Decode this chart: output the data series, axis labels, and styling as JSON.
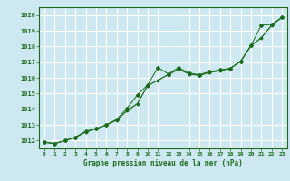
{
  "title": "Graphe pression niveau de la mer (hPa)",
  "bg_color": "#cde8f0",
  "grid_color": "#ffffff",
  "line_color": "#1a6b1a",
  "x_ticks": [
    0,
    1,
    2,
    3,
    4,
    5,
    6,
    7,
    8,
    9,
    10,
    11,
    12,
    13,
    14,
    15,
    16,
    17,
    18,
    19,
    20,
    21,
    22,
    23
  ],
  "ylim": [
    1011.5,
    1020.5
  ],
  "yticks": [
    1012,
    1013,
    1014,
    1015,
    1016,
    1017,
    1018,
    1019,
    1020
  ],
  "series1": [
    1011.9,
    1011.8,
    1012.0,
    1012.2,
    1012.6,
    1012.75,
    1013.0,
    1013.35,
    1014.05,
    1014.9,
    1015.55,
    1016.65,
    1016.25,
    1016.65,
    1016.3,
    1016.2,
    1016.4,
    1016.5,
    1016.6,
    1017.05,
    1018.05,
    1019.35,
    1019.4,
    1019.85
  ],
  "series2": [
    1011.9,
    1011.8,
    1012.0,
    1012.2,
    1012.55,
    1012.75,
    1013.0,
    1013.3,
    1013.9,
    1014.35,
    1015.5,
    1015.85,
    1016.2,
    1016.55,
    1016.25,
    1016.15,
    1016.35,
    1016.45,
    1016.6,
    1017.05,
    1018.05,
    1018.55,
    1019.35,
    1019.85
  ],
  "series3": [
    1011.9,
    1011.8,
    1012.0,
    1012.2,
    1012.55,
    1012.75,
    1013.0,
    1013.3,
    1013.9,
    1014.35,
    1015.5,
    1015.85,
    1016.2,
    1016.55,
    1016.25,
    1016.15,
    1016.35,
    1016.45,
    1016.6,
    1017.05,
    1018.05,
    1018.55,
    1019.35,
    1019.85
  ],
  "figsize": [
    3.2,
    2.0
  ],
  "dpi": 100
}
